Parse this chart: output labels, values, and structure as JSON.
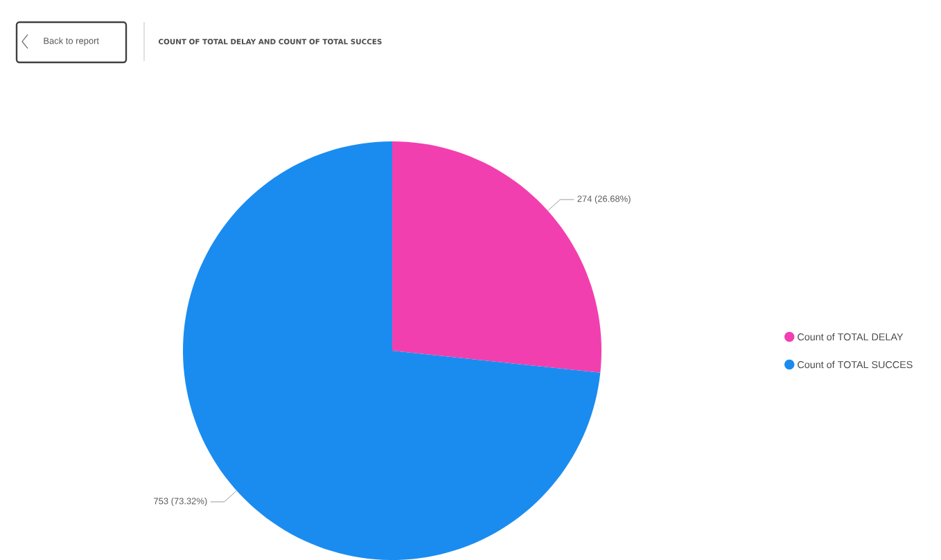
{
  "chart_data": {
    "type": "pie",
    "title": "COUNT OF TOTAL DELAY AND COUNT OF TOTAL SUCCES",
    "categories": [
      "Count of TOTAL DELAY",
      "Count of TOTAL SUCCES"
    ],
    "values": [
      274,
      753
    ],
    "colors": [
      "#f23fb0",
      "#1a8cf0"
    ],
    "value_labels": [
      "274 (26.68%)",
      "753 (73.32%)"
    ],
    "legend": "right",
    "annotations": [
      "Back to report"
    ]
  }
}
